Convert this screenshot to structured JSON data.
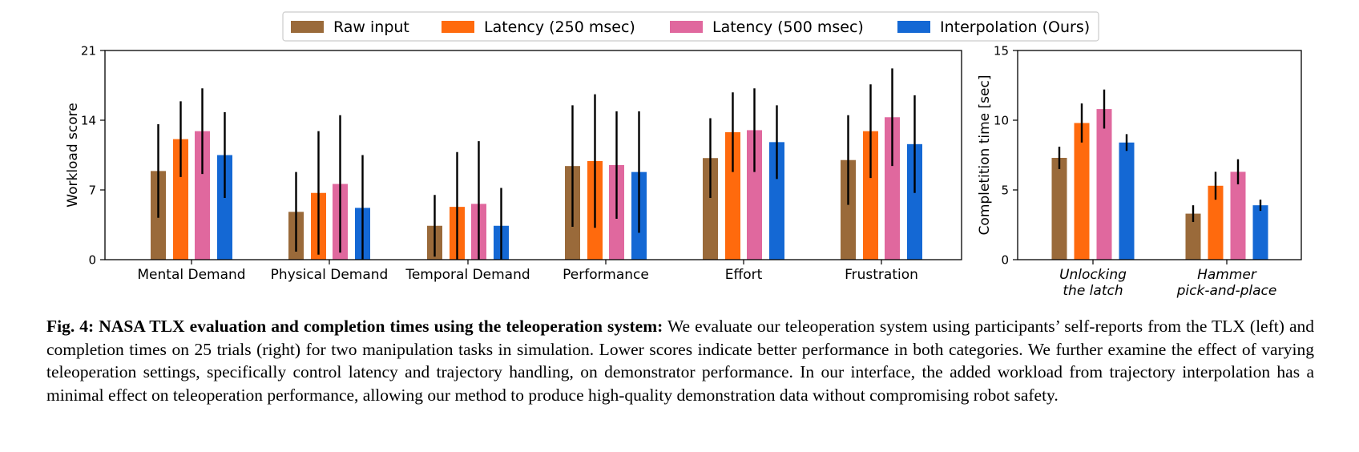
{
  "legend": [
    {
      "label": "Raw input",
      "color": "#9a6a3a"
    },
    {
      "label": "Latency (250 msec)",
      "color": "#ff6a0d"
    },
    {
      "label": "Latency (500 msec)",
      "color": "#e0689e"
    },
    {
      "label": "Interpolation (Ours)",
      "color": "#1468d4"
    }
  ],
  "chart_data": [
    {
      "type": "bar",
      "ylabel": "Workload score",
      "ylim": [
        0,
        21
      ],
      "yticks": [
        "0",
        "7",
        "14",
        "21"
      ],
      "categories": [
        "Mental Demand",
        "Physical Demand",
        "Temporal Demand",
        "Performance",
        "Effort",
        "Frustration"
      ],
      "series": [
        {
          "name": "Raw input",
          "values": [
            8.9,
            4.8,
            3.4,
            9.4,
            10.2,
            10.0
          ],
          "error": [
            4.7,
            4.0,
            3.1,
            6.1,
            4.0,
            4.5
          ]
        },
        {
          "name": "Latency (250 msec)",
          "values": [
            12.1,
            6.7,
            5.3,
            9.9,
            12.8,
            12.9
          ],
          "error": [
            3.8,
            6.2,
            5.5,
            6.7,
            4.0,
            4.7
          ]
        },
        {
          "name": "Latency (500 msec)",
          "values": [
            12.9,
            7.6,
            5.6,
            9.5,
            13.0,
            14.3
          ],
          "error": [
            4.3,
            6.9,
            6.3,
            5.4,
            4.2,
            4.9
          ]
        },
        {
          "name": "Interpolation (Ours)",
          "values": [
            10.5,
            5.2,
            3.4,
            8.8,
            11.8,
            11.6
          ],
          "error": [
            4.3,
            5.3,
            3.8,
            6.1,
            3.7,
            4.9
          ]
        }
      ],
      "grid": false,
      "legend_position": "top-center"
    },
    {
      "type": "bar",
      "ylabel": "Completition time [sec]",
      "ylim": [
        0,
        15
      ],
      "yticks": [
        "0",
        "5",
        "10",
        "15"
      ],
      "categories": [
        [
          "Unlocking",
          "the latch"
        ],
        [
          "Hammer",
          "pick-and-place"
        ]
      ],
      "series": [
        {
          "name": "Raw input",
          "values": [
            7.3,
            3.3
          ],
          "error": [
            0.8,
            0.6
          ]
        },
        {
          "name": "Latency (250 msec)",
          "values": [
            9.8,
            5.3
          ],
          "error": [
            1.4,
            1.0
          ]
        },
        {
          "name": "Latency (500 msec)",
          "values": [
            10.8,
            6.3
          ],
          "error": [
            1.4,
            0.9
          ]
        },
        {
          "name": "Interpolation (Ours)",
          "values": [
            8.4,
            3.9
          ],
          "error": [
            0.6,
            0.4
          ]
        }
      ],
      "grid": false
    }
  ],
  "caption": {
    "label": "Fig. 4: NASA TLX evaluation and completion times using the teleoperation system:",
    "text": "We evaluate our teleoperation system using participants’ self-reports from the TLX (left) and completion times on 25 trials (right) for two manipulation tasks in simulation. Lower scores indicate better performance in both categories. We further examine the effect of varying teleoperation settings, specifically control latency and trajectory handling, on demonstrator performance. In our interface, the added workload from trajectory interpolation has a minimal effect on teleoperation performance, allowing our method to produce high-quality demonstration data without compromising robot safety."
  }
}
